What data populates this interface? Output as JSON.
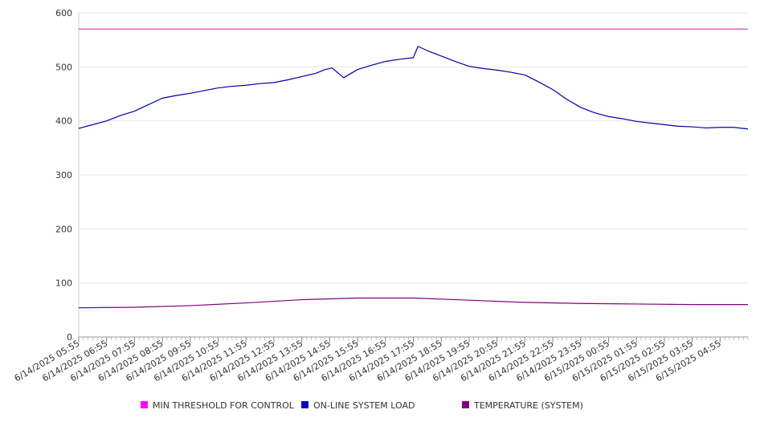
{
  "chart_data": {
    "type": "line",
    "title": "",
    "xlabel": "",
    "ylabel": "",
    "ylim": [
      0,
      600
    ],
    "yticks": [
      0,
      100,
      200,
      300,
      400,
      500,
      600
    ],
    "grid": true,
    "legend_position": "bottom",
    "x_tick_labels": [
      "6/14/2025 05:55",
      "6/14/2025 06:55",
      "6/14/2025 07:55",
      "6/14/2025 08:55",
      "6/14/2025 09:55",
      "6/14/2025 10:55",
      "6/14/2025 11:55",
      "6/14/2025 12:55",
      "6/14/2025 13:55",
      "6/14/2025 14:55",
      "6/14/2025 15:55",
      "6/14/2025 16:55",
      "6/14/2025 17:55",
      "6/14/2025 18:55",
      "6/14/2025 19:55",
      "6/14/2025 20:55",
      "6/14/2025 21:55",
      "6/14/2025 22:55",
      "6/14/2025 23:55",
      "6/15/2025 00:55",
      "6/15/2025 01:55",
      "6/15/2025 02:55",
      "6/15/2025 03:55",
      "6/15/2025 04:55"
    ],
    "x_range": [
      "6/14/2025 05:55",
      "6/15/2025 05:55"
    ],
    "series": [
      {
        "name": "MIN THRESHOLD FOR CONTROL",
        "color": "#ff00ff",
        "line_color": "#cc33cc",
        "x": [
          "6/14/2025 05:55",
          "6/15/2025 05:55"
        ],
        "values": [
          570,
          570
        ]
      },
      {
        "name": "ON-LINE SYSTEM LOAD",
        "color": "#0000cc",
        "line_color": "#0000aa",
        "x": [
          "6/14/2025 05:55",
          "6/14/2025 06:25",
          "6/14/2025 06:55",
          "6/14/2025 07:25",
          "6/14/2025 07:55",
          "6/14/2025 08:25",
          "6/14/2025 08:55",
          "6/14/2025 09:25",
          "6/14/2025 09:55",
          "6/14/2025 10:25",
          "6/14/2025 10:55",
          "6/14/2025 11:25",
          "6/14/2025 11:55",
          "6/14/2025 12:25",
          "6/14/2025 12:55",
          "6/14/2025 13:25",
          "6/14/2025 13:55",
          "6/14/2025 14:25",
          "6/14/2025 14:45",
          "6/14/2025 15:00",
          "6/14/2025 15:25",
          "6/14/2025 15:55",
          "6/14/2025 16:25",
          "6/14/2025 16:55",
          "6/14/2025 17:25",
          "6/14/2025 17:55",
          "6/14/2025 18:05",
          "6/14/2025 18:25",
          "6/14/2025 18:55",
          "6/14/2025 19:25",
          "6/14/2025 19:55",
          "6/14/2025 20:25",
          "6/14/2025 20:55",
          "6/14/2025 21:25",
          "6/14/2025 21:55",
          "6/14/2025 22:25",
          "6/14/2025 22:55",
          "6/14/2025 23:25",
          "6/14/2025 23:55",
          "6/15/2025 00:25",
          "6/15/2025 00:55",
          "6/15/2025 01:25",
          "6/15/2025 01:55",
          "6/15/2025 02:25",
          "6/15/2025 02:55",
          "6/15/2025 03:25",
          "6/15/2025 03:55",
          "6/15/2025 04:25",
          "6/15/2025 04:55",
          "6/15/2025 05:25",
          "6/15/2025 05:55"
        ],
        "values": [
          386,
          393,
          400,
          410,
          418,
          430,
          442,
          447,
          451,
          456,
          461,
          464,
          466,
          469,
          471,
          476,
          482,
          488,
          495,
          498,
          480,
          495,
          503,
          510,
          514,
          517,
          538,
          530,
          520,
          510,
          501,
          497,
          494,
          490,
          485,
          472,
          458,
          440,
          425,
          415,
          408,
          404,
          399,
          396,
          393,
          390,
          389,
          387,
          388,
          388,
          385
        ]
      },
      {
        "name": "TEMPERATURE (SYSTEM)",
        "color": "#800080",
        "line_color": "#800080",
        "x": [
          "6/14/2025 05:55",
          "6/14/2025 07:55",
          "6/14/2025 09:55",
          "6/14/2025 11:55",
          "6/14/2025 13:55",
          "6/14/2025 15:55",
          "6/14/2025 17:55",
          "6/14/2025 19:55",
          "6/14/2025 21:55",
          "6/14/2025 23:55",
          "6/15/2025 01:55",
          "6/15/2025 03:55",
          "6/15/2025 05:55"
        ],
        "values": [
          54,
          55,
          58,
          63,
          69,
          72,
          72,
          68,
          64,
          62,
          61,
          60,
          60
        ]
      }
    ]
  }
}
